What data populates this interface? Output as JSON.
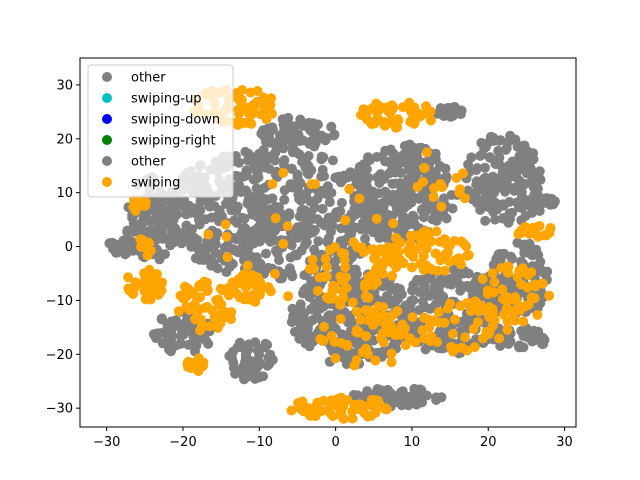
{
  "chart_data": {
    "type": "scatter",
    "title": "",
    "xlabel": "",
    "ylabel": "",
    "xlim": [
      -33.5,
      31.5
    ],
    "ylim": [
      -33.5,
      35.0
    ],
    "xticks": [
      -30,
      -20,
      -10,
      0,
      10,
      20,
      30
    ],
    "yticks": [
      -30,
      -20,
      -10,
      0,
      10,
      20,
      30
    ],
    "xtick_labels": [
      "−30",
      "−20",
      "−10",
      "0",
      "10",
      "20",
      "30"
    ],
    "ytick_labels": [
      "−30",
      "−20",
      "−10",
      "0",
      "10",
      "20",
      "30"
    ],
    "grid": false,
    "legend_position": "upper-left",
    "series": [
      {
        "name": "other",
        "color": "#808080",
        "kind": "clusters",
        "clusters": [
          {
            "cx": -8,
            "cy": 6,
            "rx": 15,
            "ry": 12,
            "n": 520
          },
          {
            "cx": 9,
            "cy": 10,
            "rx": 7,
            "ry": 9,
            "n": 240
          },
          {
            "cx": 2,
            "cy": -13,
            "rx": 8,
            "ry": 9,
            "n": 260
          },
          {
            "cx": 15,
            "cy": -12,
            "rx": 7,
            "ry": 8,
            "n": 200
          },
          {
            "cx": 22,
            "cy": 12,
            "rx": 5,
            "ry": 9,
            "n": 160
          },
          {
            "cx": 24,
            "cy": -6,
            "rx": 4,
            "ry": 7,
            "n": 110
          },
          {
            "cx": -24,
            "cy": 5,
            "rx": 3.5,
            "ry": 8,
            "n": 100
          },
          {
            "cx": -28,
            "cy": 0,
            "rx": 2,
            "ry": 1.5,
            "n": 30
          },
          {
            "cx": -20,
            "cy": -16,
            "rx": 4,
            "ry": 4,
            "n": 60
          },
          {
            "cx": -11,
            "cy": -21,
            "rx": 3,
            "ry": 4,
            "n": 50
          },
          {
            "cx": 8,
            "cy": -28,
            "rx": 6,
            "ry": 1.8,
            "n": 60
          },
          {
            "cx": 24,
            "cy": -17,
            "rx": 4,
            "ry": 2,
            "n": 40
          },
          {
            "cx": 15,
            "cy": 25,
            "rx": 1.8,
            "ry": 1,
            "n": 20
          },
          {
            "cx": -5,
            "cy": 21,
            "rx": 5,
            "ry": 3,
            "n": 70
          },
          {
            "cx": 27,
            "cy": 8,
            "rx": 2,
            "ry": 1.5,
            "n": 20
          }
        ]
      },
      {
        "name": "swiping-up",
        "color": "#00bfbf",
        "kind": "none"
      },
      {
        "name": "swiping-down",
        "color": "#0000ff",
        "kind": "none"
      },
      {
        "name": "swiping-right",
        "color": "#008000",
        "kind": "none"
      },
      {
        "name": "other",
        "color": "#808080",
        "kind": "none"
      },
      {
        "name": "swiping",
        "color": "#ffa500",
        "kind": "clusters",
        "clusters": [
          {
            "cx": -13,
            "cy": 26,
            "rx": 6,
            "ry": 3.5,
            "n": 60
          },
          {
            "cx": 8,
            "cy": 24.5,
            "rx": 5,
            "ry": 2.5,
            "n": 50
          },
          {
            "cx": -25,
            "cy": -7,
            "rx": 2.5,
            "ry": 3,
            "n": 35
          },
          {
            "cx": -17,
            "cy": -11,
            "rx": 4,
            "ry": 5,
            "n": 55
          },
          {
            "cx": -11,
            "cy": -8,
            "rx": 3,
            "ry": 3,
            "n": 35
          },
          {
            "cx": 1,
            "cy": -30,
            "rx": 7,
            "ry": 2,
            "n": 55
          },
          {
            "cx": 26,
            "cy": 3,
            "rx": 2.5,
            "ry": 1.2,
            "n": 18
          },
          {
            "cx": 12,
            "cy": -1,
            "rx": 6,
            "ry": 4,
            "n": 70
          },
          {
            "cx": 2,
            "cy": -5,
            "rx": 6,
            "ry": 6,
            "n": 60
          },
          {
            "cx": 23,
            "cy": -9,
            "rx": 5,
            "ry": 6,
            "n": 55
          },
          {
            "cx": 5,
            "cy": -17,
            "rx": 7,
            "ry": 6,
            "n": 55
          },
          {
            "cx": 17,
            "cy": -15,
            "rx": 6,
            "ry": 5,
            "n": 45
          },
          {
            "cx": -26,
            "cy": 8,
            "rx": 1.5,
            "ry": 1.5,
            "n": 10
          },
          {
            "cx": -25,
            "cy": 0,
            "rx": 1,
            "ry": 2,
            "n": 10
          },
          {
            "cx": -18,
            "cy": -22,
            "rx": 1.5,
            "ry": 1.5,
            "n": 10
          },
          {
            "cx": -5,
            "cy": 2,
            "rx": 13,
            "ry": 13,
            "n": 22
          },
          {
            "cx": 14,
            "cy": 13,
            "rx": 4,
            "ry": 6,
            "n": 14
          }
        ]
      }
    ]
  }
}
